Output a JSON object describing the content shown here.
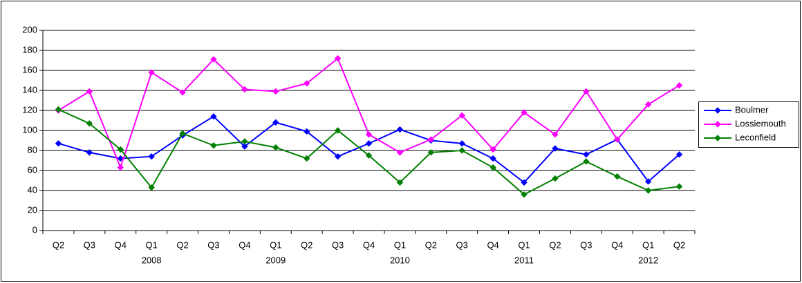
{
  "chart_data": {
    "type": "line",
    "categories": [
      "Q2",
      "Q3",
      "Q4",
      "Q1",
      "Q2",
      "Q3",
      "Q4",
      "Q1",
      "Q2",
      "Q3",
      "Q4",
      "Q1",
      "Q2",
      "Q3",
      "Q4",
      "Q1",
      "Q2",
      "Q3",
      "Q4",
      "Q1",
      "Q2"
    ],
    "category_years": [
      null,
      null,
      null,
      "2008",
      null,
      null,
      null,
      "2009",
      null,
      null,
      null,
      "2010",
      null,
      null,
      null,
      "2011",
      null,
      null,
      null,
      "2012",
      null
    ],
    "series": [
      {
        "name": "Boulmer",
        "color": "#0000ff",
        "values": [
          87,
          78,
          72,
          74,
          95,
          114,
          84,
          108,
          99,
          74,
          87,
          101,
          90,
          87,
          72,
          48,
          82,
          76,
          91,
          49,
          76
        ]
      },
      {
        "name": "Lossiemouth",
        "color": "#ff00ff",
        "values": [
          120,
          139,
          63,
          158,
          138,
          171,
          141,
          139,
          147,
          172,
          96,
          78,
          91,
          115,
          81,
          118,
          96,
          139,
          91,
          126,
          145
        ]
      },
      {
        "name": "Leconfield",
        "color": "#008000",
        "values": [
          121,
          107,
          81,
          43,
          97,
          85,
          89,
          83,
          72,
          100,
          75,
          48,
          78,
          80,
          63,
          36,
          52,
          69,
          54,
          40,
          44
        ]
      }
    ],
    "ylim": [
      0,
      200
    ],
    "yticks": [
      0,
      20,
      40,
      60,
      80,
      100,
      120,
      140,
      160,
      180,
      200
    ],
    "grid": true,
    "legend": "right"
  }
}
